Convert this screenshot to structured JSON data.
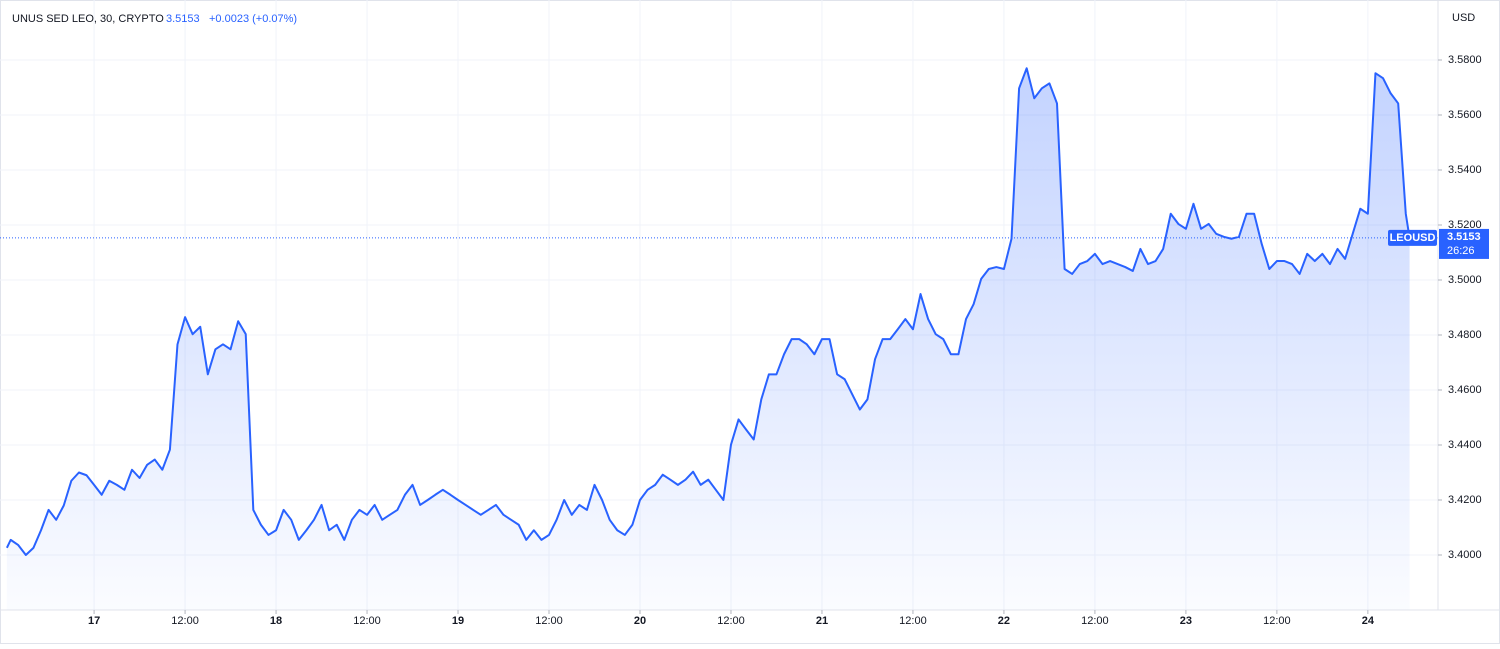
{
  "chart_data": {
    "type": "area",
    "title": "UNUS SED LEO, 30, CRYPTO",
    "last_price": 3.5153,
    "change": "+0.0023 (+0.07%)",
    "currency": "USD",
    "symbol": "LEOUSD",
    "countdown": "26:26",
    "grid": true,
    "xlim": [
      12.25,
      201.25
    ],
    "ylim": [
      3.38,
      3.6
    ],
    "xticks": [
      {
        "value": 24,
        "label": "17"
      },
      {
        "value": 36,
        "label": "12:00"
      },
      {
        "value": 48,
        "label": "18"
      },
      {
        "value": 60,
        "label": "12:00"
      },
      {
        "value": 72,
        "label": "19"
      },
      {
        "value": 84,
        "label": "12:00"
      },
      {
        "value": 96,
        "label": "20"
      },
      {
        "value": 108,
        "label": "12:00"
      },
      {
        "value": 120,
        "label": "21"
      },
      {
        "value": 132,
        "label": "12:00"
      },
      {
        "value": 144,
        "label": "22"
      },
      {
        "value": 156,
        "label": "12:00"
      },
      {
        "value": 168,
        "label": "23"
      },
      {
        "value": 180,
        "label": "12:00"
      },
      {
        "value": 192,
        "label": "24"
      }
    ],
    "yticks": [
      {
        "value": 3.4,
        "label": "3.4000"
      },
      {
        "value": 3.42,
        "label": "3.4200"
      },
      {
        "value": 3.44,
        "label": "3.4400"
      },
      {
        "value": 3.46,
        "label": "3.4600"
      },
      {
        "value": 3.48,
        "label": "3.4800"
      },
      {
        "value": 3.5,
        "label": "3.5000"
      },
      {
        "value": 3.52,
        "label": "3.5200"
      },
      {
        "value": 3.54,
        "label": "3.5400"
      },
      {
        "value": 3.56,
        "label": "3.5600"
      },
      {
        "value": 3.58,
        "label": "3.5800"
      }
    ],
    "x": [
      12.5,
      13,
      14,
      15,
      16,
      17,
      18,
      19,
      20,
      21,
      22,
      23,
      24,
      25,
      26,
      27,
      28,
      29,
      30,
      31,
      32,
      33,
      34,
      35,
      36,
      37,
      38,
      39,
      40,
      41,
      42,
      43,
      44,
      45,
      46,
      47,
      48,
      49,
      50,
      51,
      52,
      53,
      54,
      55,
      56,
      57,
      58,
      59,
      60,
      61,
      62,
      63,
      64,
      65,
      66,
      67,
      68,
      69,
      70,
      71,
      72,
      73,
      74,
      75,
      76,
      77,
      78,
      79,
      80,
      81,
      82,
      83,
      84,
      85,
      86,
      87,
      88,
      89,
      90,
      91,
      92,
      93,
      94,
      95,
      96,
      97,
      98,
      99,
      100,
      101,
      102,
      103,
      104,
      105,
      106,
      107,
      108,
      109,
      110,
      111,
      112,
      113,
      114,
      115,
      116,
      117,
      118,
      119,
      120,
      121,
      122,
      123,
      124,
      125,
      126,
      127,
      128,
      129,
      130,
      131,
      132,
      133,
      134,
      135,
      136,
      137,
      138,
      139,
      140,
      141,
      142,
      143,
      144,
      145,
      146,
      147,
      148,
      149,
      150,
      151,
      152,
      153,
      154,
      155,
      156,
      157,
      158,
      159,
      160,
      161,
      162,
      163,
      164,
      165,
      166,
      167,
      168,
      169,
      170,
      171,
      172,
      173,
      174,
      175,
      176,
      177,
      178,
      179,
      180,
      181,
      182,
      183,
      184,
      185,
      186,
      187,
      188,
      189,
      190,
      191,
      192,
      193,
      194,
      195,
      196,
      197,
      197.5
    ],
    "series": [
      {
        "name": "LEOUSD",
        "color": "#2962ff",
        "values": [
          3.4026,
          3.4055,
          3.4036,
          3.4,
          3.4026,
          3.409,
          3.4164,
          3.4128,
          3.418,
          3.427,
          3.43,
          3.429,
          3.4255,
          3.4219,
          3.427,
          3.4255,
          3.4237,
          3.431,
          3.428,
          3.4328,
          3.4347,
          3.431,
          3.4383,
          3.4766,
          3.4865,
          3.4803,
          3.483,
          3.4657,
          3.4748,
          3.4766,
          3.4748,
          3.485,
          3.4803,
          3.4164,
          3.411,
          3.4073,
          3.409,
          3.4164,
          3.4128,
          3.4055,
          3.409,
          3.4128,
          3.4182,
          3.409,
          3.411,
          3.4055,
          3.4128,
          3.4164,
          3.4146,
          3.4182,
          3.4128,
          3.4146,
          3.4164,
          3.4219,
          3.4255,
          3.4182,
          3.42,
          3.4219,
          3.4237,
          3.4219,
          3.42,
          3.4182,
          3.4164,
          3.4146,
          3.4164,
          3.4182,
          3.4146,
          3.4128,
          3.411,
          3.4055,
          3.409,
          3.4055,
          3.4073,
          3.4128,
          3.42,
          3.4146,
          3.4182,
          3.4164,
          3.4255,
          3.42,
          3.4128,
          3.409,
          3.4073,
          3.411,
          3.42,
          3.4237,
          3.4255,
          3.4292,
          3.4274,
          3.4255,
          3.4274,
          3.4303,
          3.4255,
          3.4274,
          3.4237,
          3.42,
          3.4401,
          3.4493,
          3.4456,
          3.442,
          3.4566,
          3.4657,
          3.4657,
          3.473,
          3.4785,
          3.4785,
          3.4766,
          3.473,
          3.4785,
          3.4785,
          3.4657,
          3.4639,
          3.4584,
          3.4529,
          3.4566,
          3.4712,
          3.4785,
          3.4785,
          3.4821,
          3.4858,
          3.4821,
          3.4949,
          3.4858,
          3.4803,
          3.4785,
          3.473,
          3.473,
          3.4858,
          3.4912,
          3.5004,
          3.504,
          3.5047,
          3.504,
          3.515,
          3.5697,
          3.577,
          3.5661,
          3.5697,
          3.5715,
          3.5642,
          3.504,
          3.5022,
          3.5058,
          3.5069,
          3.5095,
          3.5058,
          3.5069,
          3.5058,
          3.5047,
          3.5033,
          3.5113,
          3.5058,
          3.5069,
          3.5113,
          3.5241,
          3.5204,
          3.5186,
          3.5277,
          3.5186,
          3.5204,
          3.5168,
          3.5157,
          3.515,
          3.5157,
          3.5241,
          3.5241,
          3.5131,
          3.504,
          3.5069,
          3.5069,
          3.5058,
          3.5022,
          3.5095,
          3.5069,
          3.5095,
          3.5058,
          3.5113,
          3.5077,
          3.5168,
          3.5259,
          3.5241,
          3.5752,
          3.5734,
          3.5679,
          3.5642,
          3.5241,
          3.5153
        ]
      }
    ]
  }
}
